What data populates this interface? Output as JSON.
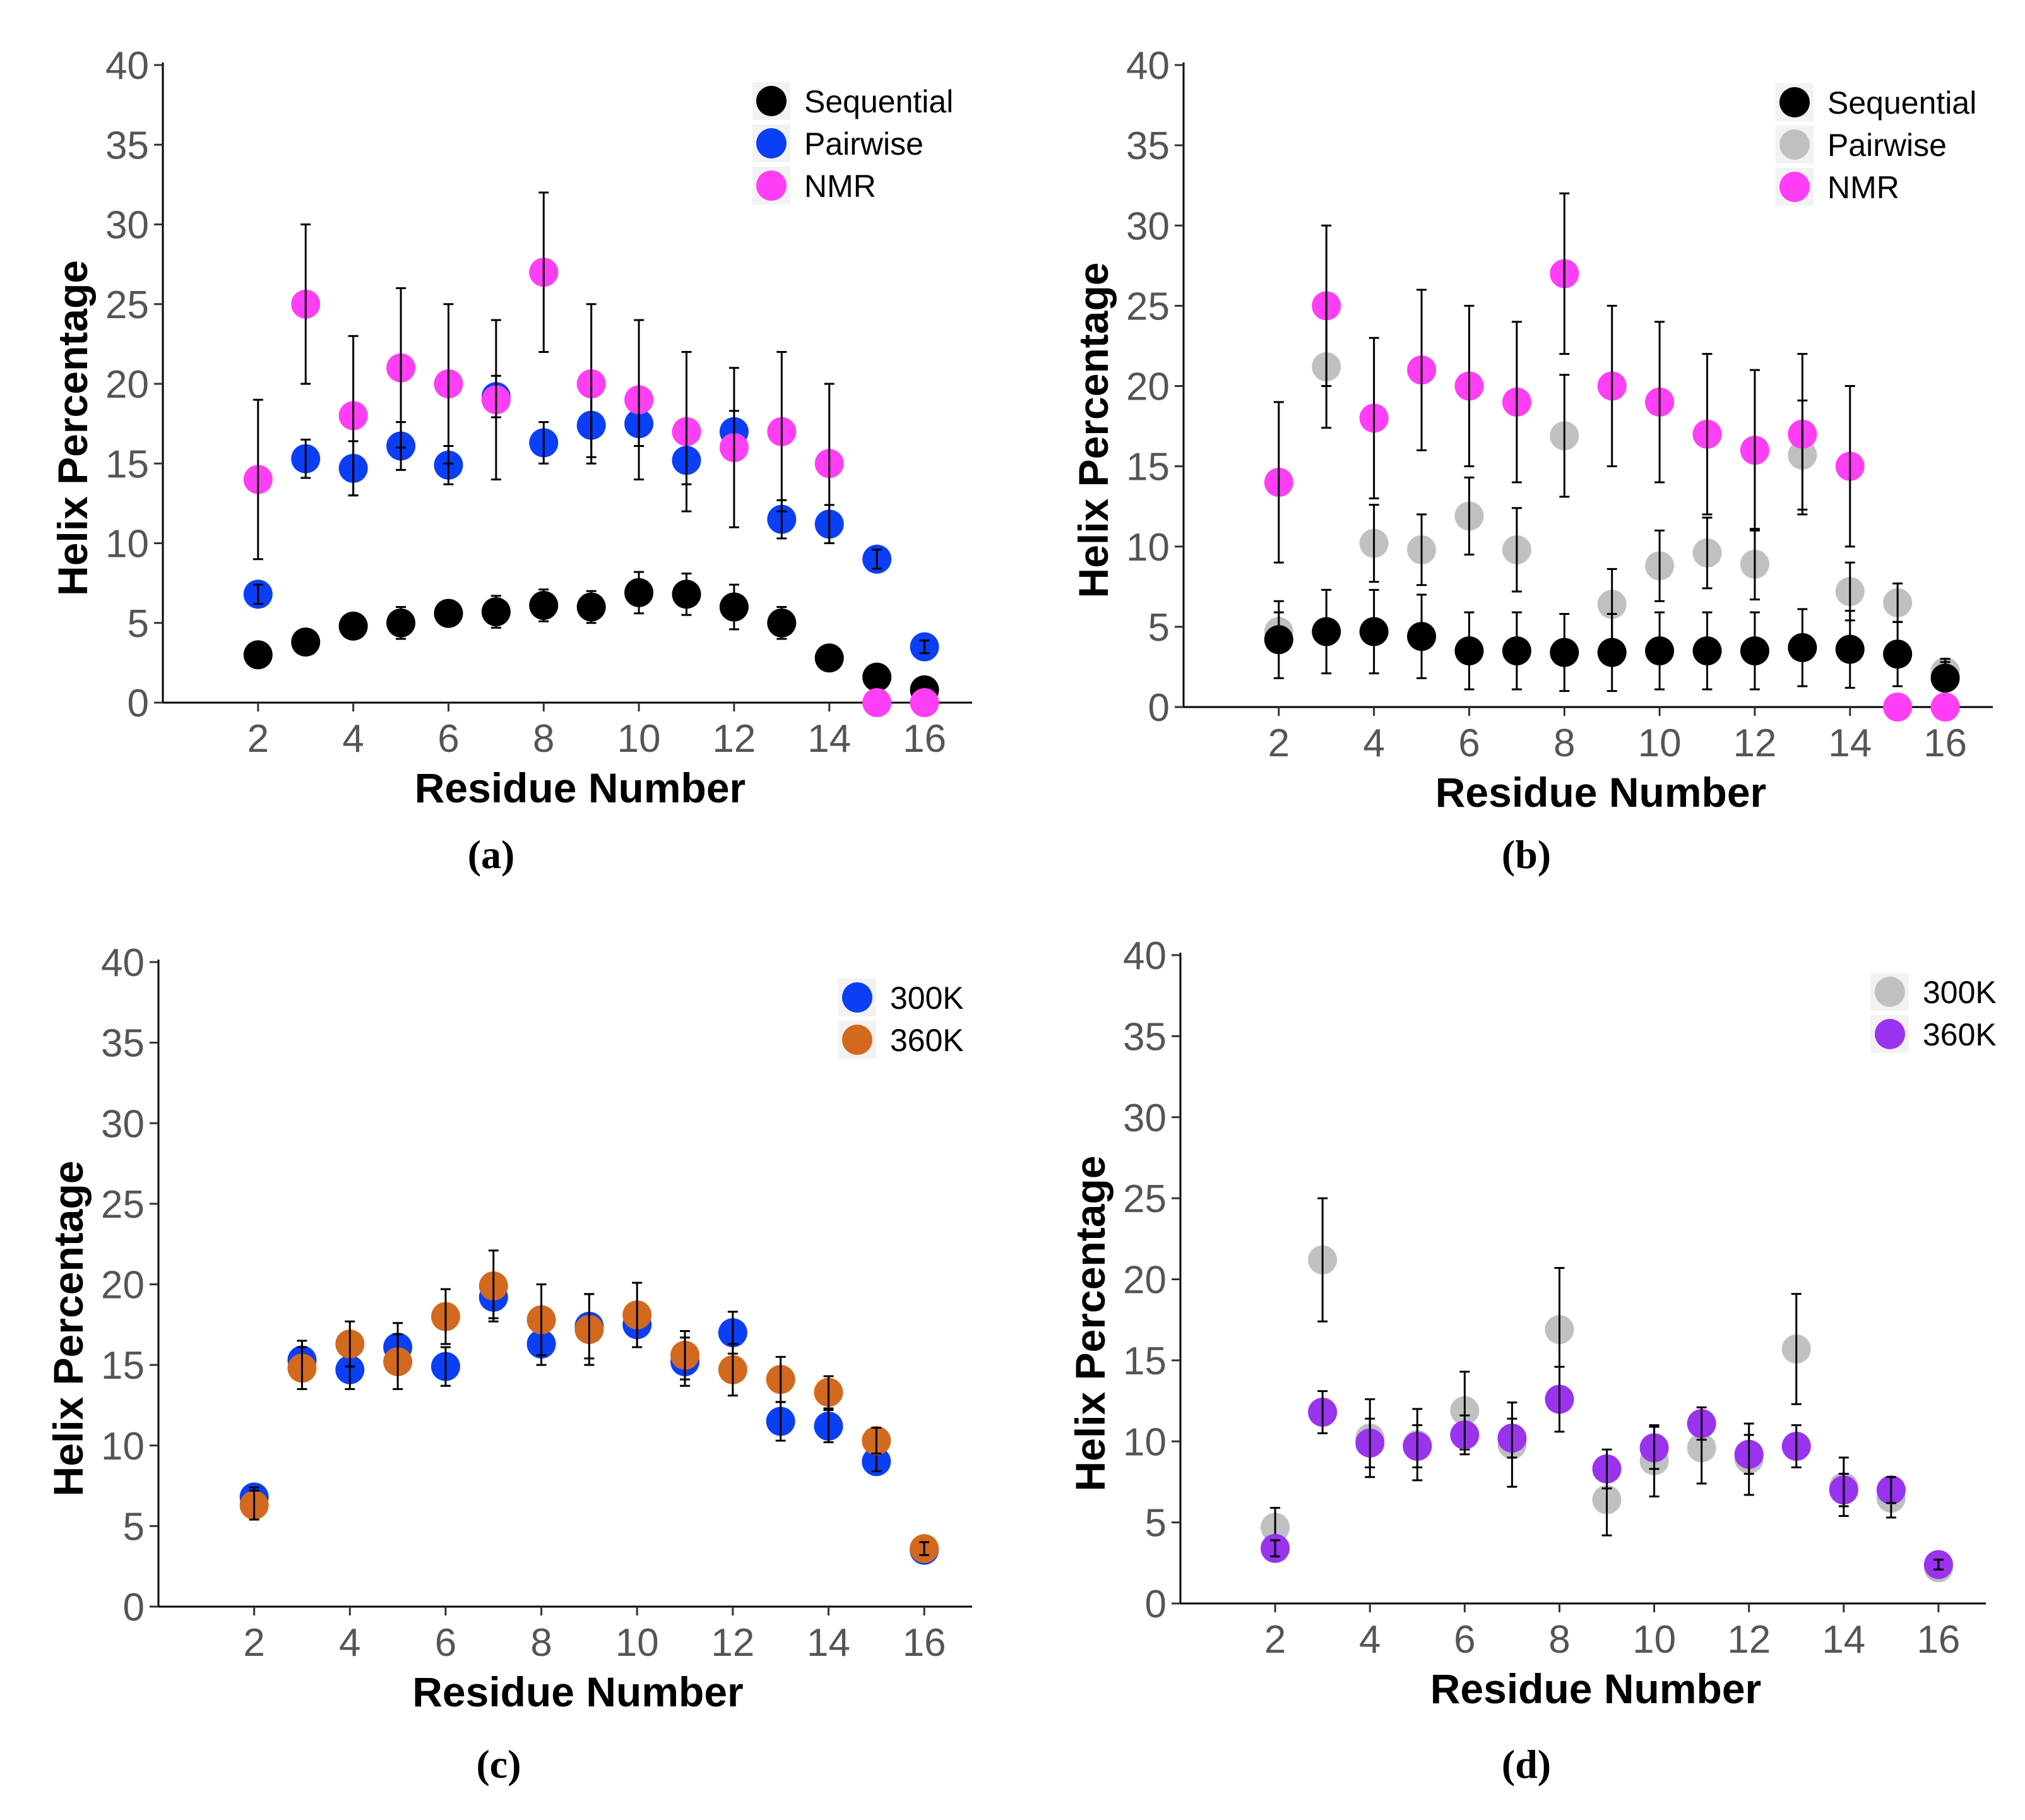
{
  "chart_data": [
    {
      "panel": "(a)",
      "type": "scatter",
      "xlabel": "Residue Number",
      "ylabel": "Helix Percentage",
      "xlim": [
        0,
        17
      ],
      "ylim": [
        0,
        40
      ],
      "xticks": [
        2,
        4,
        6,
        8,
        10,
        12,
        14,
        16
      ],
      "yticks": [
        0,
        5,
        10,
        15,
        20,
        25,
        30,
        35,
        40
      ],
      "legend_position": "top-right",
      "series": [
        {
          "name": "Sequential",
          "color": "#000000",
          "x": [
            2,
            3,
            4,
            5,
            6,
            7,
            8,
            9,
            10,
            11,
            12,
            13,
            14,
            15,
            16
          ],
          "values": [
            3.0,
            3.8,
            4.8,
            5.0,
            5.6,
            5.7,
            6.1,
            6.0,
            6.9,
            6.8,
            6.0,
            5.0,
            2.8,
            1.6,
            0.8
          ],
          "errors": [
            0.5,
            0.5,
            0.7,
            1.0,
            0.8,
            1.0,
            1.0,
            1.0,
            1.3,
            1.3,
            1.4,
            1.0,
            0.6,
            0.4,
            0.4
          ]
        },
        {
          "name": "Pairwise",
          "color": "#0a3ff5",
          "x": [
            2,
            3,
            4,
            5,
            6,
            7,
            8,
            9,
            10,
            11,
            12,
            13,
            14,
            15,
            16
          ],
          "values": [
            6.8,
            15.3,
            14.7,
            16.1,
            14.9,
            19.2,
            16.3,
            17.4,
            17.5,
            15.2,
            17.0,
            11.5,
            11.2,
            9.0,
            3.5
          ],
          "errors": [
            0.6,
            1.2,
            1.7,
            1.5,
            1.2,
            1.3,
            1.3,
            2.0,
            1.4,
            1.5,
            1.3,
            1.2,
            1.2,
            0.6,
            0.4
          ]
        },
        {
          "name": "NMR",
          "color": "#ff3ef5",
          "x": [
            2,
            3,
            4,
            5,
            6,
            7,
            8,
            9,
            10,
            11,
            12,
            13,
            14,
            15,
            16
          ],
          "values": [
            14,
            25,
            18,
            21,
            20,
            19,
            27,
            20,
            19,
            17,
            16,
            17,
            15,
            0,
            0
          ],
          "errors": [
            5,
            5,
            5,
            5,
            5,
            5,
            5,
            5,
            5,
            5,
            5,
            5,
            5,
            0,
            0
          ]
        }
      ]
    },
    {
      "panel": "(b)",
      "type": "scatter",
      "xlabel": "Residue Number",
      "ylabel": "Helix Percentage",
      "xlim": [
        0,
        17
      ],
      "ylim": [
        0,
        40
      ],
      "xticks": [
        2,
        4,
        6,
        8,
        10,
        12,
        14,
        16
      ],
      "yticks": [
        0,
        5,
        10,
        15,
        20,
        25,
        30,
        35,
        40
      ],
      "legend_position": "top-right",
      "series": [
        {
          "name": "Pairwise",
          "color": "#c0c0c0",
          "x": [
            2,
            3,
            4,
            5,
            6,
            7,
            8,
            9,
            10,
            11,
            12,
            13,
            14,
            15,
            16
          ],
          "values": [
            4.7,
            21.2,
            10.2,
            9.8,
            11.9,
            9.8,
            16.9,
            6.4,
            8.8,
            9.6,
            8.9,
            15.7,
            7.2,
            6.5,
            2.2
          ],
          "errors": [
            1.2,
            3.8,
            2.4,
            2.2,
            2.4,
            2.6,
            3.8,
            2.2,
            2.2,
            2.2,
            2.2,
            3.4,
            1.8,
            1.2,
            0.8
          ]
        },
        {
          "name": "Sequential",
          "color": "#000000",
          "x": [
            2,
            3,
            4,
            5,
            6,
            7,
            8,
            9,
            10,
            11,
            12,
            13,
            14,
            15,
            16
          ],
          "values": [
            4.2,
            4.7,
            4.7,
            4.4,
            3.5,
            3.5,
            3.4,
            3.4,
            3.5,
            3.5,
            3.5,
            3.7,
            3.6,
            3.3,
            1.8
          ],
          "errors": [
            2.4,
            2.6,
            2.6,
            2.6,
            2.4,
            2.4,
            2.4,
            2.4,
            2.4,
            2.4,
            2.4,
            2.4,
            2.4,
            2.0,
            1.0
          ]
        },
        {
          "name": "NMR",
          "color": "#ff3ef5",
          "x": [
            2,
            3,
            4,
            5,
            6,
            7,
            8,
            9,
            10,
            11,
            12,
            13,
            14,
            15,
            16
          ],
          "values": [
            14,
            25,
            18,
            21,
            20,
            19,
            27,
            20,
            19,
            17,
            16,
            17,
            15,
            0,
            0
          ],
          "errors": [
            5,
            5,
            5,
            5,
            5,
            5,
            5,
            5,
            5,
            5,
            5,
            5,
            5,
            0,
            0
          ]
        }
      ],
      "legend_order": [
        "Sequential",
        "Pairwise",
        "NMR"
      ]
    },
    {
      "panel": "(c)",
      "type": "scatter",
      "xlabel": "Residue Number",
      "ylabel": "Helix Percentage",
      "xlim": [
        0,
        17
      ],
      "ylim": [
        0,
        40
      ],
      "xticks": [
        2,
        4,
        6,
        8,
        10,
        12,
        14,
        16
      ],
      "yticks": [
        0,
        5,
        10,
        15,
        20,
        25,
        30,
        35,
        40
      ],
      "legend_position": "top-right",
      "series": [
        {
          "name": "300K",
          "color": "#0a3ff5",
          "x": [
            2,
            3,
            4,
            5,
            6,
            7,
            8,
            9,
            10,
            11,
            12,
            13,
            14,
            15,
            16
          ],
          "values": [
            6.8,
            15.3,
            14.7,
            16.1,
            14.9,
            19.2,
            16.3,
            17.4,
            17.5,
            15.2,
            17.0,
            11.5,
            11.2,
            9.0,
            3.5
          ],
          "errors": [
            0.6,
            1.2,
            1.2,
            1.5,
            1.2,
            1.3,
            1.3,
            2.0,
            1.4,
            1.5,
            1.3,
            1.2,
            1.0,
            0.6,
            0.4
          ]
        },
        {
          "name": "360K",
          "color": "#d2691e",
          "x": [
            2,
            3,
            4,
            5,
            6,
            7,
            8,
            9,
            10,
            11,
            12,
            13,
            14,
            15,
            16
          ],
          "values": [
            6.3,
            14.8,
            16.3,
            15.2,
            18.0,
            19.9,
            17.8,
            17.2,
            18.1,
            15.6,
            14.7,
            14.1,
            13.3,
            10.3,
            3.6
          ],
          "errors": [
            0.9,
            1.3,
            1.4,
            1.7,
            1.7,
            2.2,
            2.2,
            2.2,
            2.0,
            1.5,
            1.6,
            1.4,
            1.0,
            0.8,
            0.4
          ]
        }
      ]
    },
    {
      "panel": "(d)",
      "type": "scatter",
      "xlabel": "Residue Number",
      "ylabel": "Helix Percentage",
      "xlim": [
        0,
        17
      ],
      "ylim": [
        0,
        40
      ],
      "xticks": [
        2,
        4,
        6,
        8,
        10,
        12,
        14,
        16
      ],
      "yticks": [
        0,
        5,
        10,
        15,
        20,
        25,
        30,
        35,
        40
      ],
      "legend_position": "top-right",
      "series": [
        {
          "name": "300K",
          "color": "#c0c0c0",
          "x": [
            2,
            3,
            4,
            5,
            6,
            7,
            8,
            9,
            10,
            11,
            12,
            13,
            14,
            15,
            16
          ],
          "values": [
            4.7,
            21.2,
            10.2,
            9.8,
            11.9,
            9.8,
            16.9,
            6.4,
            8.8,
            9.6,
            8.9,
            15.7,
            7.2,
            6.5,
            2.2
          ],
          "errors": [
            1.2,
            3.8,
            2.4,
            2.2,
            2.4,
            2.6,
            3.8,
            2.2,
            2.2,
            2.2,
            2.2,
            3.4,
            1.8,
            1.2,
            0.4
          ]
        },
        {
          "name": "360K",
          "color": "#9933ee",
          "x": [
            2,
            3,
            4,
            5,
            6,
            7,
            8,
            9,
            10,
            11,
            12,
            13,
            14,
            15,
            16
          ],
          "values": [
            3.4,
            11.8,
            9.9,
            9.7,
            10.4,
            10.2,
            12.6,
            8.3,
            9.6,
            11.1,
            9.2,
            9.7,
            7.0,
            7.0,
            2.4
          ],
          "errors": [
            0.5,
            1.3,
            1.5,
            1.3,
            1.2,
            1.2,
            2.0,
            1.2,
            1.3,
            1.0,
            1.2,
            1.3,
            1.0,
            0.8,
            0.3
          ]
        }
      ]
    }
  ]
}
